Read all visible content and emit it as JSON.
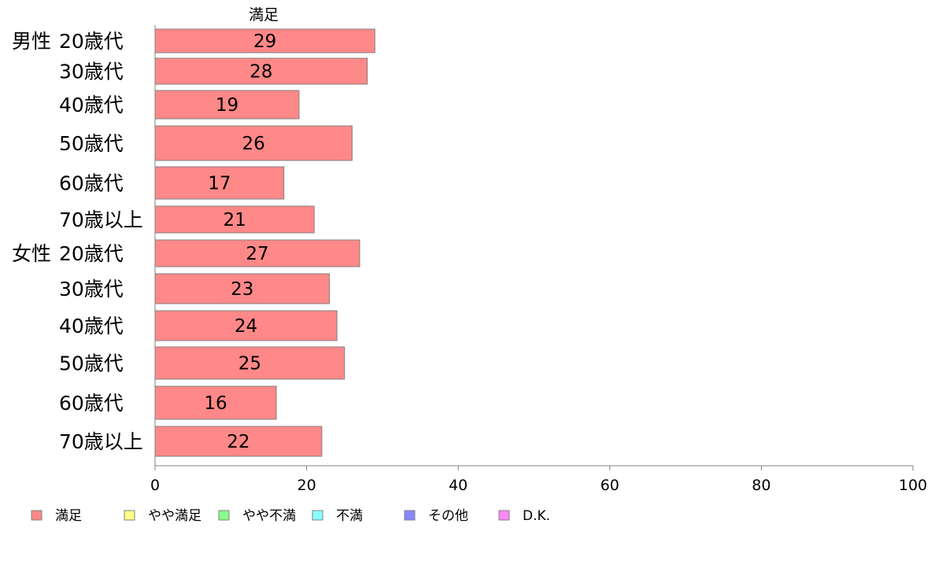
{
  "chart_data": {
    "type": "bar",
    "orientation": "horizontal",
    "series_title": "満足",
    "xlim": [
      0,
      100
    ],
    "x_ticks": [
      0,
      20,
      40,
      60,
      80,
      100
    ],
    "groups": [
      {
        "label": "男性",
        "categories": [
          "20歳代",
          "30歳代",
          "40歳代",
          "50歳代",
          "60歳代",
          "70歳以上"
        ],
        "values": [
          29,
          28,
          19,
          26,
          17,
          21
        ]
      },
      {
        "label": "女性",
        "categories": [
          "20歳代",
          "30歳代",
          "40歳代",
          "50歳代",
          "60歳代",
          "70歳以上"
        ],
        "values": [
          27,
          23,
          24,
          25,
          16,
          22
        ]
      }
    ],
    "bar_color": "#ff8888",
    "legend": [
      {
        "label": "満足",
        "color": "#ff8888"
      },
      {
        "label": "やや満足",
        "color": "#ffff88"
      },
      {
        "label": "やや不満",
        "color": "#88ff88"
      },
      {
        "label": "不満",
        "color": "#88ffff"
      },
      {
        "label": "その他",
        "color": "#8888ff"
      },
      {
        "label": "D.K.",
        "color": "#ff88ff"
      }
    ],
    "legend_position": "bottom-left",
    "grid": false
  }
}
